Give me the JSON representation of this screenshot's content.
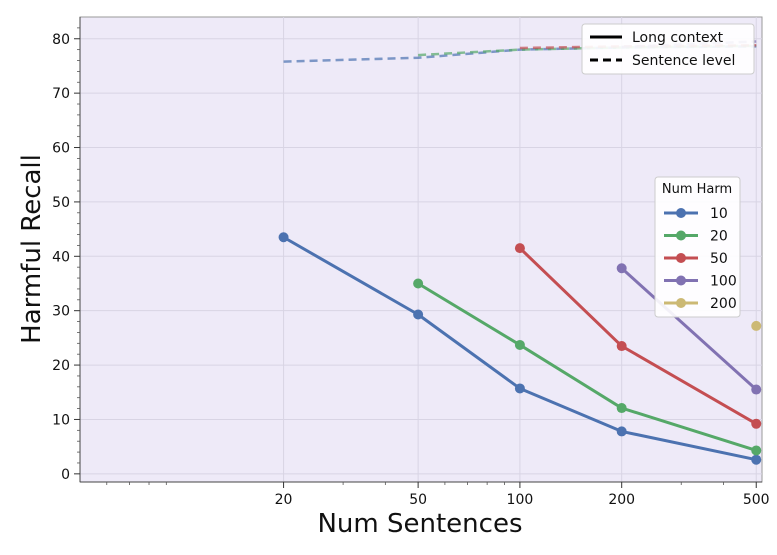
{
  "chart_data": {
    "type": "line",
    "title": "",
    "xlabel": "Num Sentences",
    "ylabel": "Harmful Recall",
    "x_ticks": [
      20,
      50,
      100,
      200,
      500
    ],
    "y_ticks": [
      0,
      10,
      20,
      30,
      40,
      50,
      60,
      70,
      80
    ],
    "xlim": [
      5,
      520
    ],
    "ylim": [
      -1.5,
      84
    ],
    "x_scale": "log",
    "grid": true,
    "colors": {
      "10": "#4c72b0",
      "20": "#55a868",
      "50": "#c44e52",
      "100": "#8172b2",
      "200": "#ccb974"
    },
    "series": [
      {
        "name": "10",
        "style": "solid",
        "x": [
          20,
          50,
          100,
          200,
          500
        ],
        "y": [
          43.5,
          29.3,
          15.7,
          7.8,
          2.6
        ]
      },
      {
        "name": "20",
        "style": "solid",
        "x": [
          50,
          100,
          200,
          500
        ],
        "y": [
          35.0,
          23.7,
          12.1,
          4.3
        ]
      },
      {
        "name": "50",
        "style": "solid",
        "x": [
          100,
          200,
          500
        ],
        "y": [
          41.5,
          23.5,
          9.2
        ]
      },
      {
        "name": "100",
        "style": "solid",
        "x": [
          200,
          500
        ],
        "y": [
          37.8,
          15.5
        ]
      },
      {
        "name": "200",
        "style": "solid",
        "x": [
          500
        ],
        "y": [
          27.2
        ]
      },
      {
        "name": "10",
        "style": "dashed",
        "x": [
          20,
          50,
          100,
          200,
          500
        ],
        "y": [
          75.8,
          76.5,
          78.0,
          78.4,
          78.6
        ]
      },
      {
        "name": "20",
        "style": "dashed",
        "x": [
          50,
          100,
          200,
          500
        ],
        "y": [
          77.0,
          78.0,
          78.4,
          78.7
        ]
      },
      {
        "name": "50",
        "style": "dashed",
        "x": [
          100,
          200,
          500
        ],
        "y": [
          78.3,
          78.6,
          78.8
        ]
      },
      {
        "name": "100",
        "style": "dashed",
        "x": [
          200,
          500
        ],
        "y": [
          78.5,
          79.5
        ]
      },
      {
        "name": "200",
        "style": "dashed",
        "x": [
          500
        ],
        "y": [
          78.7
        ]
      }
    ],
    "legend_style": {
      "position": "top-right",
      "entries": [
        {
          "label": "Long context",
          "style": "solid"
        },
        {
          "label": "Sentence level",
          "style": "dashed"
        }
      ]
    },
    "legend_num_harm": {
      "position": "right",
      "title": "Num Harm",
      "entries": [
        "10",
        "20",
        "50",
        "100",
        "200"
      ]
    }
  }
}
